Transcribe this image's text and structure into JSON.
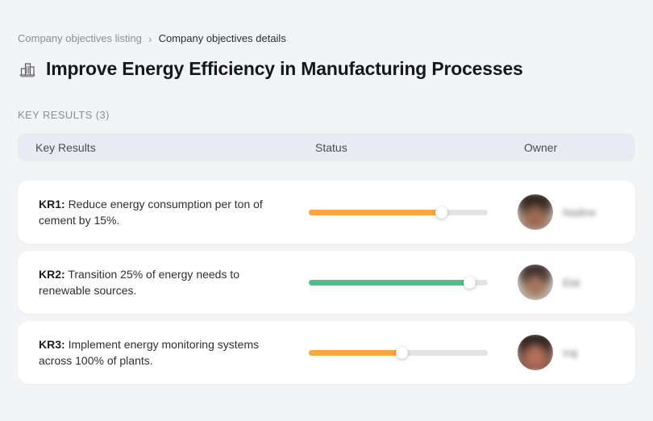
{
  "breadcrumb": {
    "items": [
      {
        "label": "Company objectives listing"
      },
      {
        "label": "Company objectives details"
      }
    ],
    "separator": "›"
  },
  "header": {
    "icon": "buildings-icon",
    "title": "Improve Energy Efficiency in Manufacturing Processes"
  },
  "section": {
    "label": "KEY RESULTS (3)"
  },
  "table": {
    "columns": [
      "Key Results",
      "Status",
      "Owner"
    ],
    "rows": [
      {
        "kr_label": "KR1:",
        "text": "Reduce energy consumption per ton of cement by 15%.",
        "progress_percent": 74,
        "progress_color": "#F9A63C",
        "owner": "Nadine"
      },
      {
        "kr_label": "KR2:",
        "text": "Transition 25% of energy needs to renewable sources.",
        "progress_percent": 90,
        "progress_color": "#4EBE8B",
        "owner": "Elai"
      },
      {
        "kr_label": "KR3:",
        "text": "Implement energy monitoring systems across 100% of plants.",
        "progress_percent": 52,
        "progress_color": "#F9A63C",
        "owner": "Iraj"
      }
    ]
  },
  "colors": {
    "accent_orange": "#F9A63C",
    "accent_green": "#4EBE8B",
    "track": "#E3E3E6",
    "header_bar_bg": "#E9EBF2",
    "page_bg": "#F3F4F6"
  }
}
